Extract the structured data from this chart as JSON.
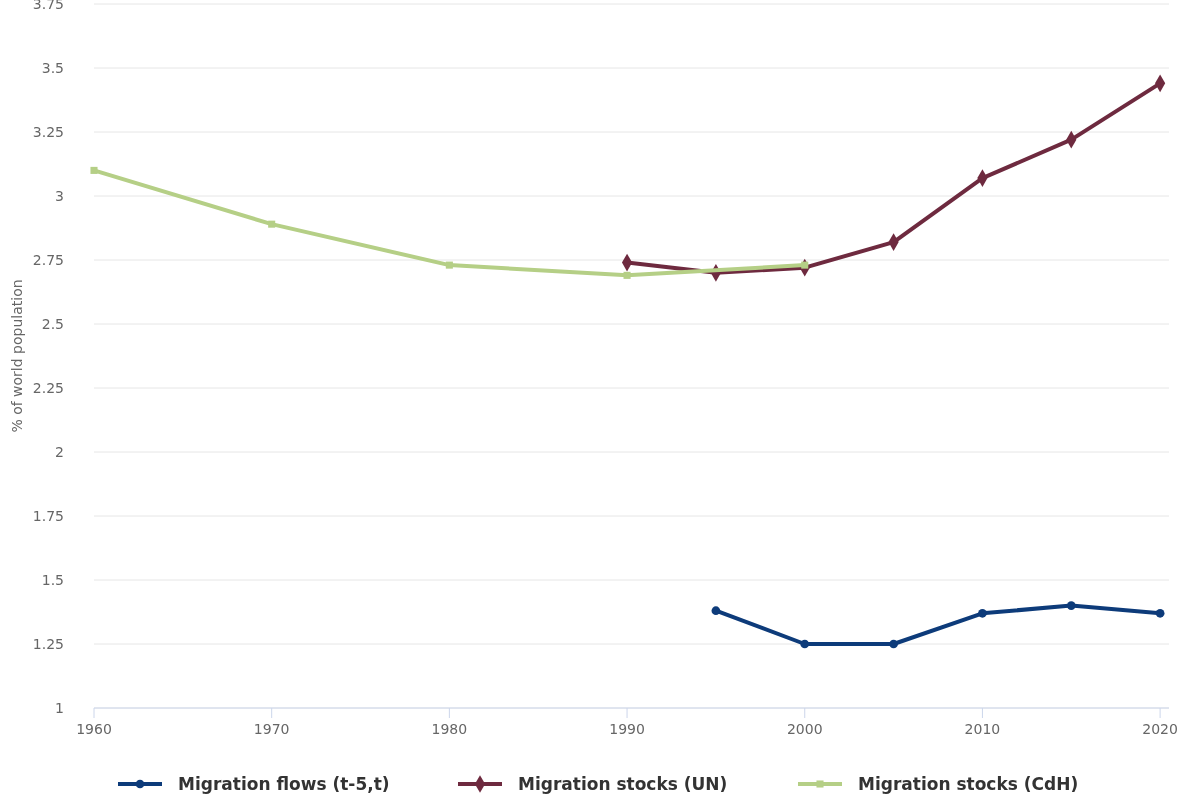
{
  "chart_data": {
    "type": "line",
    "ylabel": "% of world population",
    "xlim": [
      1960,
      2020.5
    ],
    "xticks": [
      1960,
      1970,
      1980,
      1990,
      2000,
      2010,
      2020
    ],
    "ylim": [
      1,
      3.75
    ],
    "yticks": [
      1,
      1.25,
      1.5,
      1.75,
      2,
      2.25,
      2.5,
      2.75,
      3,
      3.25,
      3.5,
      3.75
    ],
    "grid": "y",
    "legend": "bottom",
    "line_style": "solid",
    "series": [
      {
        "name": "Migration flows (t-5,t)",
        "color": "#0d3b7a",
        "marker": "circle",
        "x": [
          1995,
          2000,
          2005,
          2010,
          2015,
          2020
        ],
        "values": [
          1.38,
          1.25,
          1.25,
          1.37,
          1.4,
          1.37
        ]
      },
      {
        "name": "Migration stocks (UN)",
        "color": "#6e2a3f",
        "marker": "diamond",
        "x": [
          1990,
          1995,
          2000,
          2005,
          2010,
          2015,
          2020
        ],
        "values": [
          2.74,
          2.7,
          2.72,
          2.82,
          3.07,
          3.22,
          3.44
        ]
      },
      {
        "name": "Migration stocks (CdH)",
        "color": "#b5cf86",
        "marker": "square",
        "x": [
          1960,
          1970,
          1980,
          1990,
          2000
        ],
        "values": [
          3.1,
          2.89,
          2.73,
          2.69,
          2.73
        ]
      }
    ]
  }
}
